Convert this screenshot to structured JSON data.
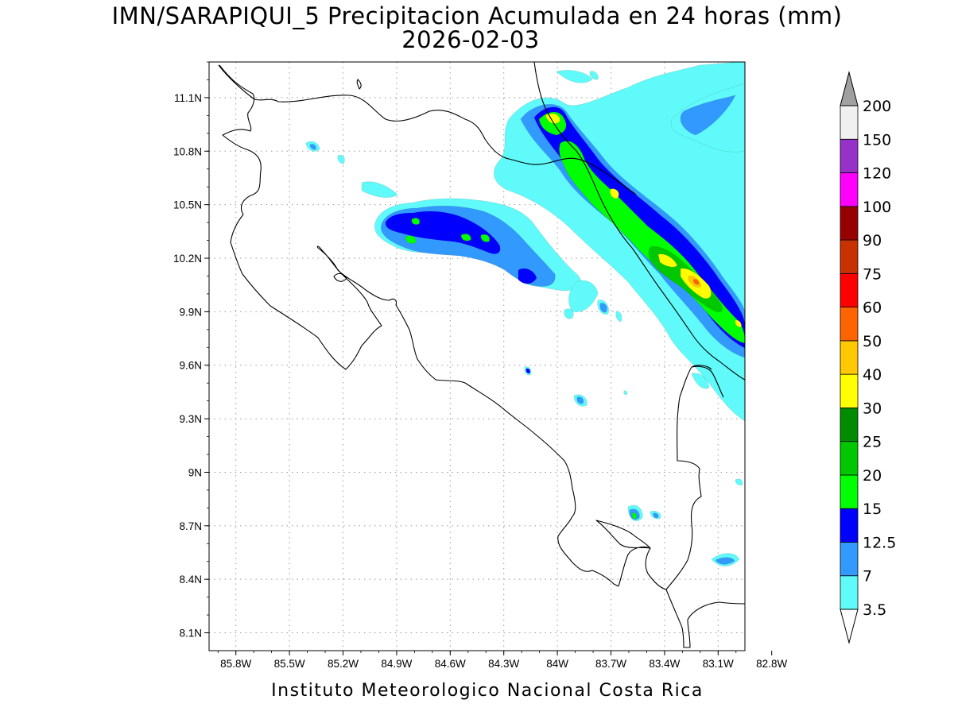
{
  "header": {
    "title_line1": "IMN/SARAPIQUI_5 Precipitacion Acumulada en 24 horas (mm)",
    "title_line2": "2026-02-03"
  },
  "footer": {
    "credit": "Instituto Meteorologico Nacional Costa Rica"
  },
  "map": {
    "lat_range": [
      8.0,
      11.3
    ],
    "lon_range": [
      -85.95,
      -82.95
    ],
    "lat_ticks": [
      {
        "value": 11.1,
        "label": "11.1N"
      },
      {
        "value": 10.8,
        "label": "10.8N"
      },
      {
        "value": 10.5,
        "label": "10.5N"
      },
      {
        "value": 10.2,
        "label": "10.2N"
      },
      {
        "value": 9.9,
        "label": "9.9N"
      },
      {
        "value": 9.6,
        "label": "9.6N"
      },
      {
        "value": 9.3,
        "label": "9.3N"
      },
      {
        "value": 9.0,
        "label": "9N"
      },
      {
        "value": 8.7,
        "label": "8.7N"
      },
      {
        "value": 8.4,
        "label": "8.4N"
      },
      {
        "value": 8.1,
        "label": "8.1N"
      }
    ],
    "lon_ticks": [
      {
        "value": -85.8,
        "label": "85.8W"
      },
      {
        "value": -85.5,
        "label": "85.5W"
      },
      {
        "value": -85.2,
        "label": "85.2W"
      },
      {
        "value": -84.9,
        "label": "84.9W"
      },
      {
        "value": -84.6,
        "label": "84.6W"
      },
      {
        "value": -84.3,
        "label": "84.3W"
      },
      {
        "value": -84.0,
        "label": "84W"
      },
      {
        "value": -83.7,
        "label": "83.7W"
      },
      {
        "value": -83.4,
        "label": "83.4W"
      },
      {
        "value": -83.1,
        "label": "83.1W"
      },
      {
        "value": -82.8,
        "label": "82.8W"
      }
    ]
  },
  "colorbar": {
    "under_color": "#ffffff",
    "over_color": "#a0a0a0",
    "levels": [
      {
        "label": "3.5",
        "color": "#60fafa"
      },
      {
        "label": "7",
        "color": "#3299ff"
      },
      {
        "label": "12.5",
        "color": "#0000ff"
      },
      {
        "label": "15",
        "color": "#00ff00"
      },
      {
        "label": "20",
        "color": "#00c800"
      },
      {
        "label": "25",
        "color": "#008c00"
      },
      {
        "label": "30",
        "color": "#ffff00"
      },
      {
        "label": "40",
        "color": "#ffc800"
      },
      {
        "label": "50",
        "color": "#ff6400"
      },
      {
        "label": "60",
        "color": "#ff0000"
      },
      {
        "label": "75",
        "color": "#c83200"
      },
      {
        "label": "90",
        "color": "#960000"
      },
      {
        "label": "100",
        "color": "#ff00ff"
      },
      {
        "label": "120",
        "color": "#9632c8"
      },
      {
        "label": "150",
        "color": "#f0f0f0"
      },
      {
        "label": "200",
        "color": ""
      }
    ]
  },
  "precip_bands": [
    {
      "level": "3.5",
      "color": "#60fafa"
    },
    {
      "level": "7",
      "color": "#3299ff"
    },
    {
      "level": "12.5",
      "color": "#0000ff"
    },
    {
      "level": "15",
      "color": "#00ff00"
    },
    {
      "level": "20",
      "color": "#00c800"
    },
    {
      "level": "25",
      "color": "#008c00"
    },
    {
      "level": "30",
      "color": "#ffff00"
    },
    {
      "level": "40",
      "color": "#ffc800"
    },
    {
      "level": "50",
      "color": "#ff6400"
    }
  ]
}
